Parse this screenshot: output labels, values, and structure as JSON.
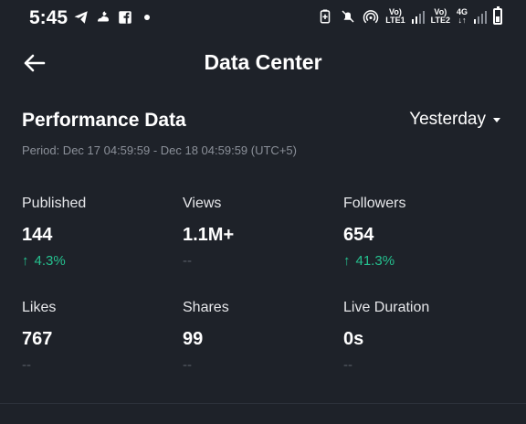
{
  "status_bar": {
    "time": "5:45",
    "sim1_label_top": "Vo)",
    "sim1_label_bottom": "LTE1",
    "sim2_label_top": "Vo)",
    "sim2_label_bottom": "LTE2",
    "network_type": "4G"
  },
  "header": {
    "title": "Data Center"
  },
  "performance": {
    "title": "Performance Data",
    "range_label": "Yesterday",
    "period": "Period: Dec 17 04:59:59 - Dec 18 04:59:59 (UTC+5)"
  },
  "metrics": [
    {
      "label": "Published",
      "value": "144",
      "change": "4.3%",
      "trend": "up"
    },
    {
      "label": "Views",
      "value": "1.1M+",
      "change": "--",
      "trend": "none"
    },
    {
      "label": "Followers",
      "value": "654",
      "change": "41.3%",
      "trend": "up"
    },
    {
      "label": "Likes",
      "value": "767",
      "change": "--",
      "trend": "none"
    },
    {
      "label": "Shares",
      "value": "99",
      "change": "--",
      "trend": "none"
    },
    {
      "label": "Live Duration",
      "value": "0s",
      "change": "--",
      "trend": "none"
    }
  ],
  "colors": {
    "background": "#1e2229",
    "positive": "#25c18f",
    "muted": "#8b9099"
  },
  "icons": [
    "telegram-icon",
    "cloud-moon-icon",
    "facebook-icon",
    "notification-dot-icon",
    "battery-saver-icon",
    "mute-icon",
    "hotspot-icon",
    "signal-icon",
    "battery-icon",
    "back-arrow-icon",
    "caret-down-icon",
    "arrow-up-icon"
  ]
}
